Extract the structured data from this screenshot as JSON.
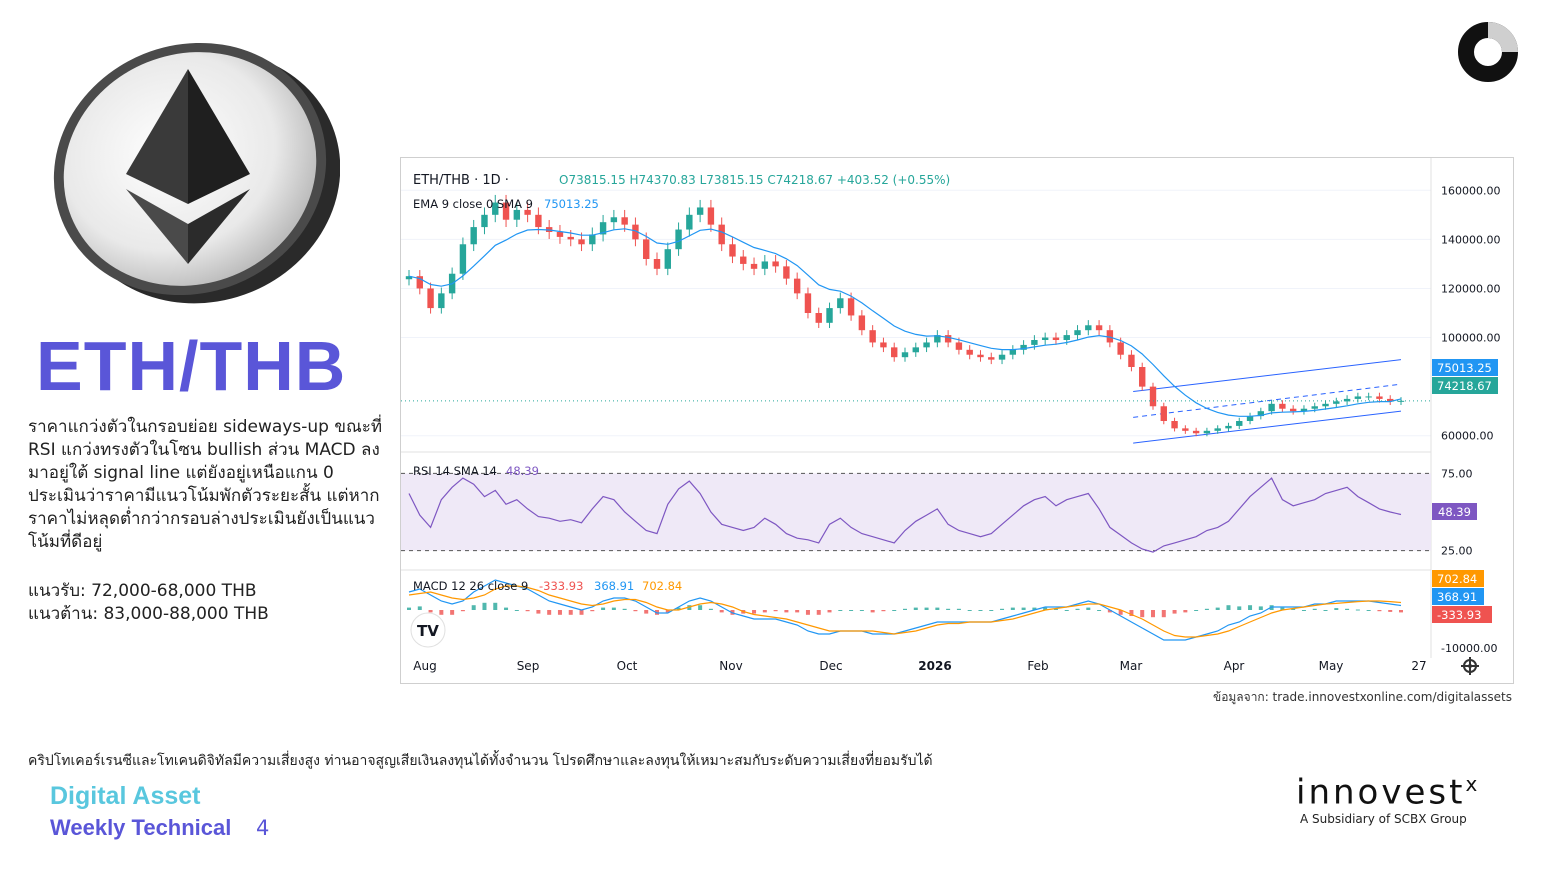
{
  "title": "ETH/THB",
  "analysis": "ราคาแกว่งตัวในกรอบย่อย sideways-up ขณะที่ RSI แกว่งทรงตัวในโซน bullish ส่วน MACD ลงมาอยู่ใต้ signal line แต่ยังอยู่เหนือแกน 0 ประเมินว่าราคามีแนวโน้มพักตัวระยะสั้น แต่หากราคาไม่หลุดต่ำกว่ากรอบล่างประเมินยังเป็นแนวโน้มที่ดีอยู่",
  "support": "แนวรับ: 72,000-68,000 THB",
  "resistance": "แนวต้าน: 83,000-88,000 THB",
  "source": "ข้อมูลจาก: trade.innovestxonline.com/digitalassets",
  "disclaimer": "คริปโทเคอร์เรนซีและโทเคนดิจิทัลมีความเสี่ยงสูง ท่านอาจสูญเสียเงินลงทุนได้ทั้งจำนวน โปรดศึกษาและลงทุนให้เหมาะสมกับระดับความเสี่ยงที่ยอมรับได้",
  "footer": {
    "line1": "Digital Asset",
    "line2": "Weekly Technical",
    "page": "4"
  },
  "brand": {
    "name": "innovest",
    "sup": "x",
    "sub": "A Subsidiary of SCBX Group"
  },
  "icons": {
    "coin": "ethereum-coin-icon",
    "corner": "ring-logo-icon",
    "tv": "tradingview-logo-icon",
    "settings": "gear-icon"
  },
  "colors": {
    "up": "#26a69a",
    "down": "#ef5350",
    "ema": "#2196f3",
    "rsi": "#7e57c2",
    "macd": "#2196f3",
    "signal": "#ff9800",
    "channel": "#2962ff",
    "accent": "#5a56d8"
  },
  "chart_data": {
    "type": "candlestick",
    "symbol": "ETH/THB",
    "interval": "1D",
    "header": {
      "symbol_label": "ETH/THB · 1D ·",
      "ohlc": "O73815.15 H74370.83 L73815.15 C74218.67 +403.52 (+0.55%)",
      "ema_label": "EMA 9 close 0 SMA 9",
      "ema_value": "75013.25"
    },
    "x_ticks": [
      "Aug",
      "Sep",
      "Oct",
      "Nov",
      "Dec",
      "2026",
      "Feb",
      "Mar",
      "Apr",
      "May",
      "27"
    ],
    "y_ticks": [
      "160000.00",
      "140000.00",
      "120000.00",
      "100000.00",
      "60000.00"
    ],
    "ylim": [
      55000,
      165000
    ],
    "last_close": 74218.67,
    "ema_last": 75013.25,
    "price_tags": [
      "75013.25",
      "74218.67"
    ],
    "closes": [
      125000,
      120000,
      112000,
      118000,
      126000,
      138000,
      145000,
      150000,
      155000,
      148000,
      152000,
      150000,
      145000,
      143000,
      141000,
      140000,
      138000,
      142000,
      147000,
      149000,
      146000,
      140000,
      132000,
      128000,
      136000,
      144000,
      150000,
      153000,
      146000,
      138000,
      133000,
      130000,
      128000,
      131000,
      129000,
      124000,
      118000,
      110000,
      106000,
      112000,
      116000,
      109000,
      103000,
      98000,
      96000,
      92000,
      94000,
      96000,
      98000,
      101000,
      98000,
      95000,
      93000,
      92000,
      91000,
      93000,
      95000,
      97000,
      99000,
      100000,
      99000,
      101000,
      103000,
      105000,
      103000,
      98000,
      93000,
      88000,
      80000,
      72000,
      66000,
      63000,
      62000,
      61000,
      62000,
      63000,
      64000,
      66000,
      68000,
      70000,
      73000,
      71000,
      70000,
      71000,
      72000,
      73000,
      74000,
      75000,
      76000,
      76000,
      75000,
      74000,
      74218.67
    ],
    "ema": [
      125000,
      124000,
      121600,
      120900,
      121900,
      125100,
      129100,
      133300,
      137600,
      139700,
      142200,
      143800,
      144000,
      143800,
      143200,
      142600,
      141700,
      141700,
      142700,
      143900,
      144300,
      143500,
      141200,
      138500,
      138000,
      139200,
      141400,
      143700,
      144200,
      143000,
      141000,
      138800,
      136700,
      135500,
      134200,
      132100,
      129300,
      125400,
      121500,
      119600,
      118900,
      116900,
      114100,
      110900,
      107900,
      104700,
      102600,
      101300,
      100600,
      100700,
      100100,
      99100,
      97900,
      96700,
      95600,
      95100,
      95100,
      95500,
      96200,
      96900,
      97300,
      98000,
      99000,
      100200,
      100800,
      100200,
      98800,
      96600,
      93300,
      89000,
      84400,
      80100,
      76500,
      73400,
      71100,
      69500,
      68400,
      67900,
      67900,
      68300,
      69300,
      69600,
      69700,
      69900,
      70300,
      70900,
      71500,
      72200,
      73000,
      73600,
      73900,
      73900,
      75013.25
    ],
    "channel": {
      "upper": [
        {
          "x": 0.73,
          "y": 78000
        },
        {
          "x": 1.0,
          "y": 91000
        }
      ],
      "lower": [
        {
          "x": 0.73,
          "y": 57000
        },
        {
          "x": 1.0,
          "y": 70000
        }
      ],
      "mid": [
        {
          "x": 0.73,
          "y": 67500
        },
        {
          "x": 1.0,
          "y": 81000
        }
      ]
    },
    "rsi": {
      "label": "RSI 14 SMA 14",
      "value": "48.39",
      "levels": [
        "75.00",
        "25.00"
      ],
      "ylim": [
        15,
        85
      ],
      "values": [
        62,
        48,
        40,
        58,
        66,
        72,
        68,
        60,
        64,
        55,
        58,
        52,
        47,
        46,
        44,
        45,
        43,
        52,
        60,
        58,
        50,
        44,
        38,
        36,
        55,
        65,
        70,
        62,
        50,
        42,
        40,
        38,
        40,
        46,
        42,
        36,
        33,
        32,
        30,
        42,
        46,
        40,
        36,
        34,
        32,
        30,
        38,
        44,
        48,
        52,
        42,
        38,
        36,
        34,
        36,
        42,
        48,
        54,
        58,
        60,
        54,
        58,
        60,
        62,
        52,
        40,
        35,
        30,
        26,
        24,
        28,
        30,
        32,
        34,
        38,
        40,
        44,
        52,
        60,
        66,
        72,
        58,
        54,
        56,
        58,
        62,
        64,
        66,
        60,
        56,
        52,
        50,
        48.39
      ]
    },
    "macd": {
      "label": "MACD 12 26 close 9",
      "values": [
        "-333.93",
        "368.91",
        "702.84"
      ],
      "tags": [
        "702.84",
        "368.91",
        "-333.93"
      ],
      "y_ticks": [
        "-10000.00"
      ],
      "macd_line": [
        0.6,
        0.7,
        0.5,
        0.3,
        0.2,
        0.3,
        0.6,
        0.8,
        1.0,
        0.9,
        0.8,
        0.7,
        0.5,
        0.3,
        0.2,
        0.1,
        0.0,
        0.1,
        0.3,
        0.4,
        0.4,
        0.3,
        0.1,
        -0.1,
        -0.1,
        0.1,
        0.3,
        0.4,
        0.3,
        0.1,
        -0.1,
        -0.2,
        -0.3,
        -0.3,
        -0.3,
        -0.4,
        -0.5,
        -0.7,
        -0.8,
        -0.8,
        -0.7,
        -0.7,
        -0.7,
        -0.8,
        -0.8,
        -0.8,
        -0.7,
        -0.6,
        -0.5,
        -0.4,
        -0.4,
        -0.4,
        -0.4,
        -0.4,
        -0.4,
        -0.3,
        -0.2,
        -0.1,
        0.0,
        0.1,
        0.1,
        0.1,
        0.2,
        0.3,
        0.2,
        0.0,
        -0.2,
        -0.4,
        -0.6,
        -0.8,
        -1.0,
        -1.0,
        -1.0,
        -0.9,
        -0.8,
        -0.7,
        -0.5,
        -0.4,
        -0.2,
        -0.1,
        0.1,
        0.1,
        0.1,
        0.1,
        0.2,
        0.2,
        0.3,
        0.3,
        0.3,
        0.3,
        0.25,
        0.2,
        0.15
      ],
      "signal_line": [
        0.5,
        0.55,
        0.6,
        0.5,
        0.4,
        0.35,
        0.4,
        0.5,
        0.7,
        0.8,
        0.8,
        0.75,
        0.65,
        0.5,
        0.4,
        0.3,
        0.2,
        0.15,
        0.2,
        0.3,
        0.35,
        0.35,
        0.25,
        0.1,
        0.0,
        0.0,
        0.1,
        0.2,
        0.25,
        0.2,
        0.1,
        -0.05,
        -0.15,
        -0.2,
        -0.25,
        -0.3,
        -0.4,
        -0.5,
        -0.6,
        -0.7,
        -0.7,
        -0.7,
        -0.7,
        -0.7,
        -0.75,
        -0.8,
        -0.75,
        -0.7,
        -0.6,
        -0.5,
        -0.45,
        -0.45,
        -0.4,
        -0.4,
        -0.4,
        -0.35,
        -0.3,
        -0.2,
        -0.1,
        0.0,
        0.05,
        0.1,
        0.15,
        0.2,
        0.2,
        0.1,
        0.0,
        -0.15,
        -0.3,
        -0.5,
        -0.7,
        -0.85,
        -0.9,
        -0.9,
        -0.85,
        -0.8,
        -0.7,
        -0.55,
        -0.4,
        -0.25,
        -0.1,
        0.0,
        0.05,
        0.1,
        0.15,
        0.2,
        0.22,
        0.25,
        0.28,
        0.3,
        0.3,
        0.28,
        0.25
      ]
    }
  }
}
